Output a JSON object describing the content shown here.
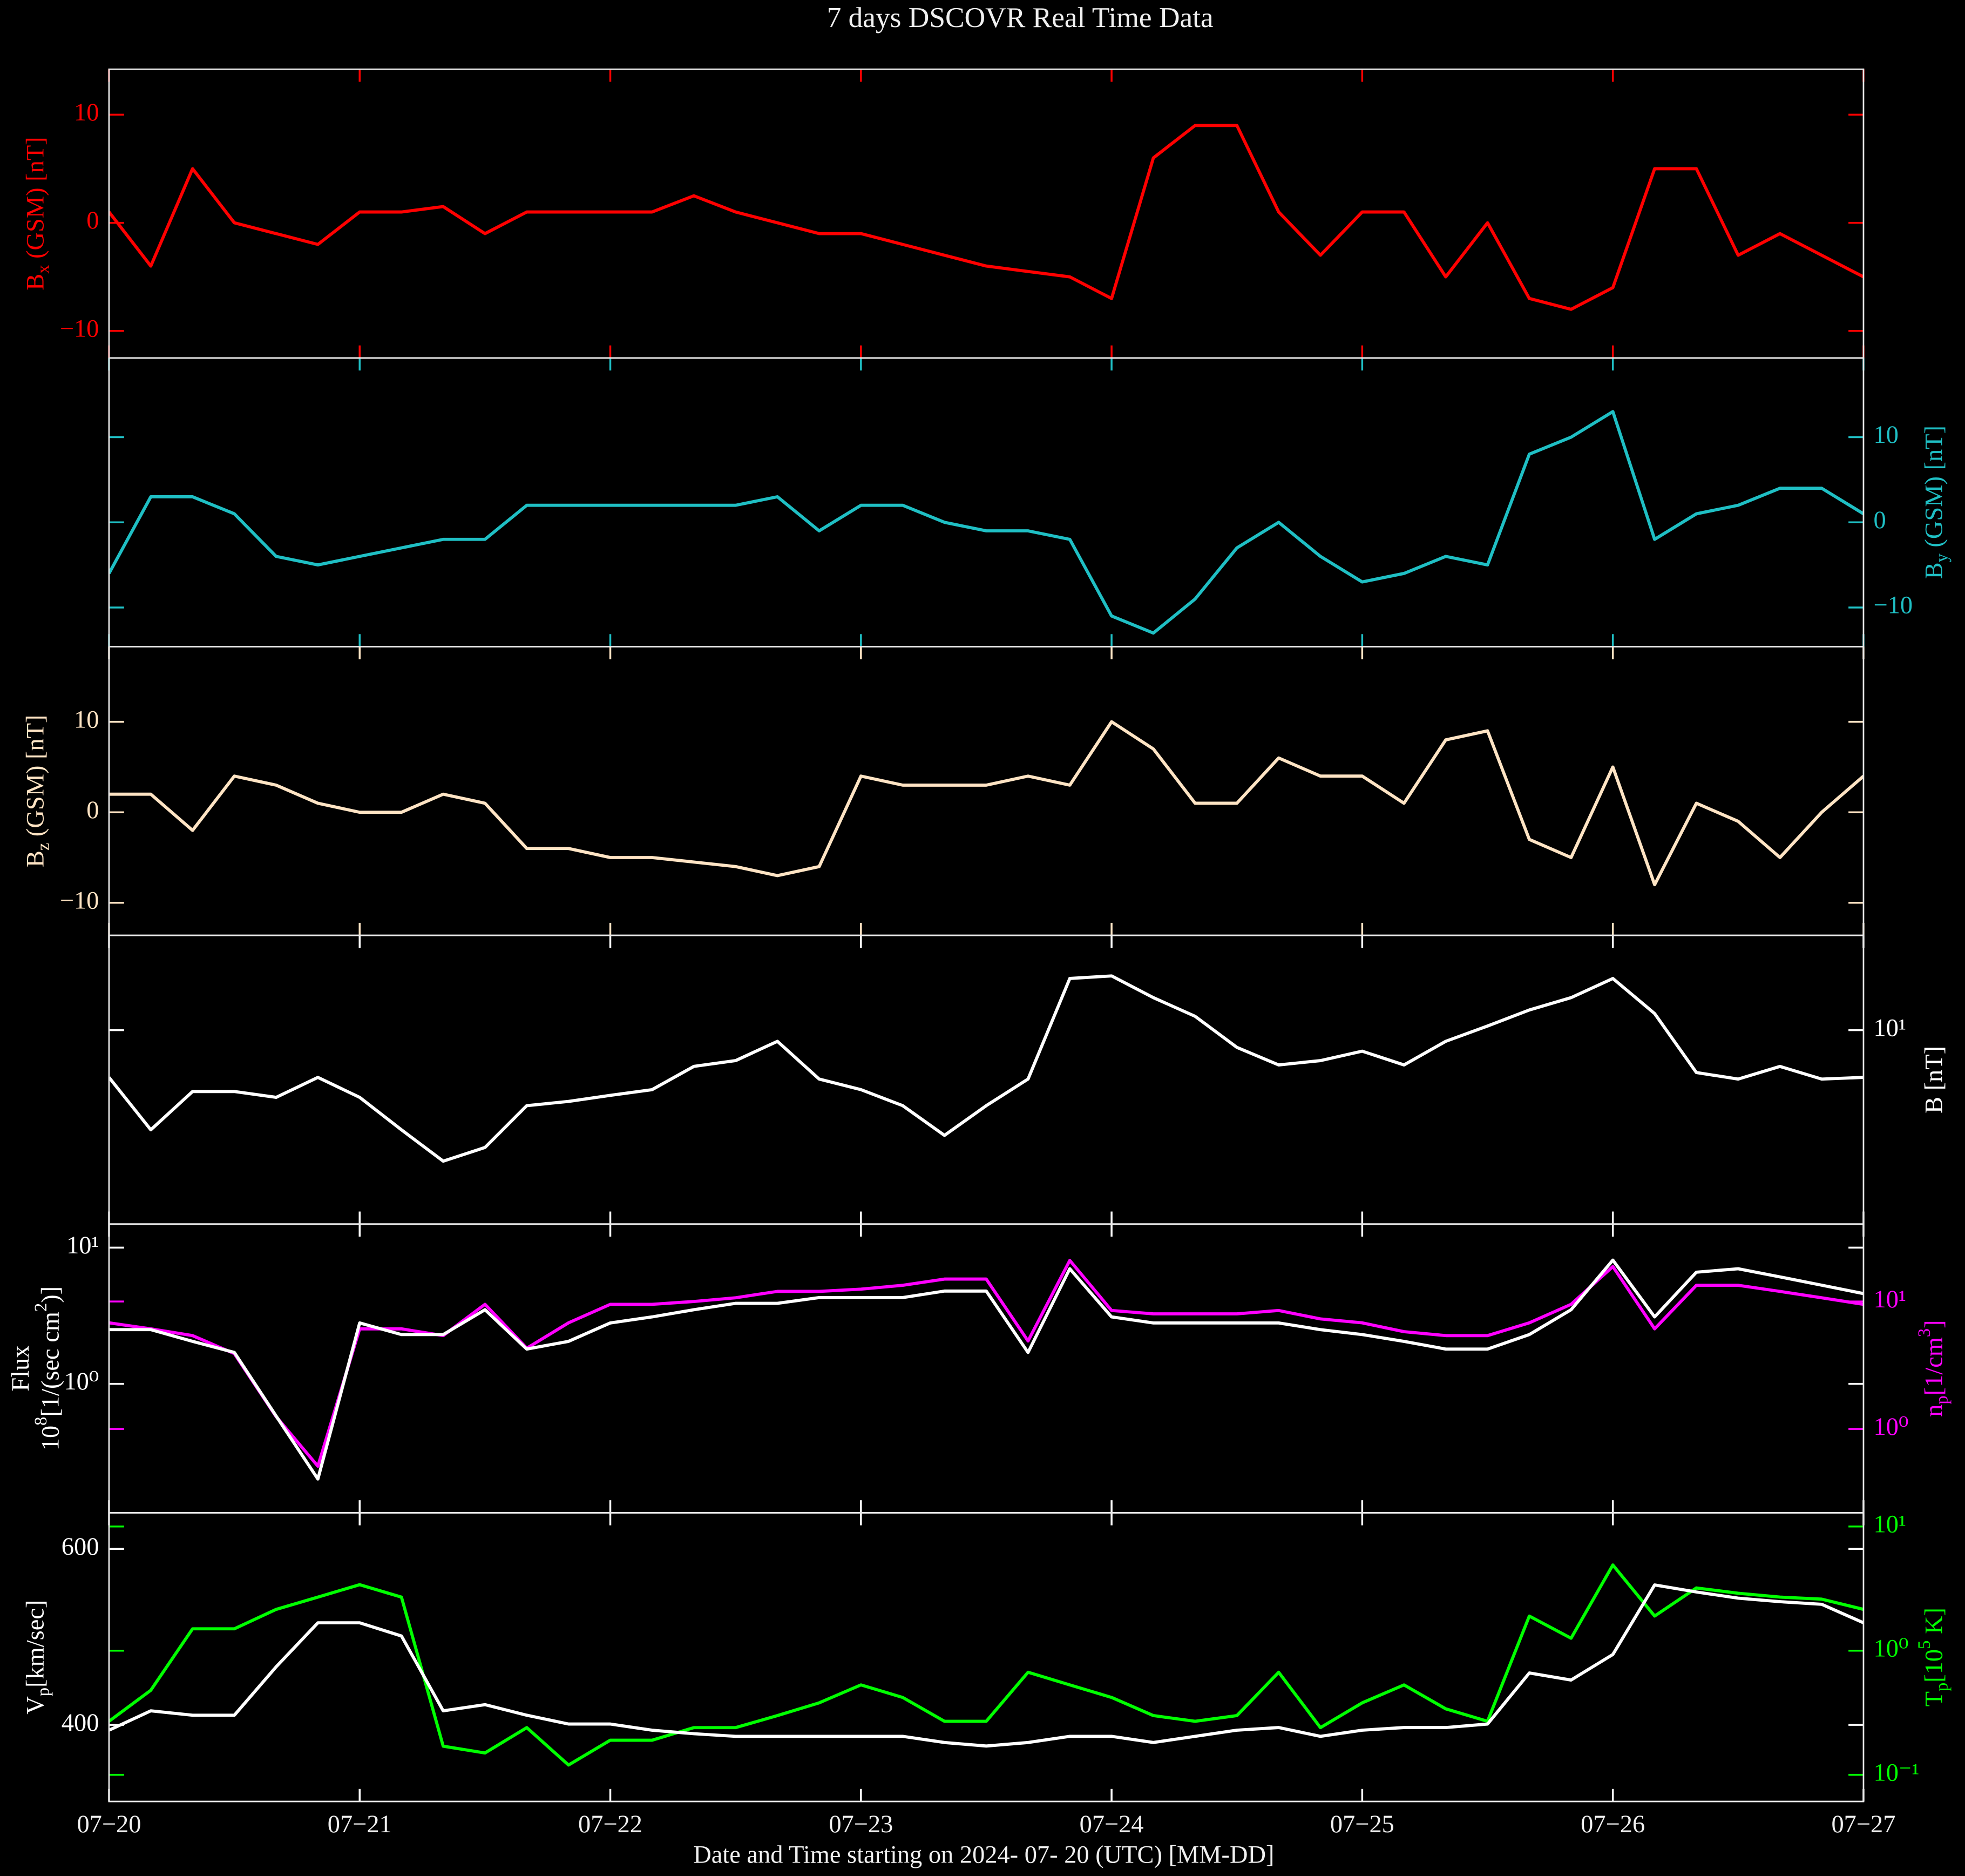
{
  "chart_data": [
    {
      "type": "line",
      "title": "7 days DSCOVR Real Time Data",
      "x": [
        0,
        0.1667,
        0.3333,
        0.5,
        0.6667,
        0.8333,
        1,
        1.1667,
        1.3333,
        1.5,
        1.6667,
        1.8333,
        2,
        2.1667,
        2.3333,
        2.5,
        2.6667,
        2.8333,
        3,
        3.1667,
        3.3333,
        3.5,
        3.6667,
        3.8333,
        4,
        4.1667,
        4.3333,
        4.5,
        4.6667,
        4.8333,
        5,
        5.1667,
        5.3333,
        5.5,
        5.6667,
        5.8333,
        6,
        6.1667,
        6.3333,
        6.5,
        6.6667,
        6.8333,
        7
      ],
      "xlim": [
        0,
        7
      ],
      "xticks": [
        0,
        1,
        2,
        3,
        4,
        5,
        6,
        7
      ],
      "ylim": [
        -12.5,
        14.2
      ],
      "yticks": [
        {
          "value": -10,
          "label": "−10"
        },
        0,
        10
      ],
      "yside": "left",
      "axis_color": "#ff0000",
      "ylabel": [
        [
          "B",
          "x",
          " (GSM) [nT]"
        ]
      ],
      "series": [
        {
          "color": "#ff0000",
          "values": [
            1,
            -4,
            5,
            0,
            -1,
            -2,
            1,
            1,
            1.5,
            -1,
            1,
            1,
            1,
            1,
            2.5,
            1,
            0,
            -1,
            -1,
            -2,
            -3,
            -4,
            -4.5,
            -5,
            -7,
            6,
            9,
            9,
            1,
            -3,
            1,
            1,
            -5,
            0,
            -7,
            -8,
            -6,
            5,
            5,
            -3,
            -1,
            -3,
            -5
          ]
        }
      ]
    },
    {
      "type": "line",
      "x": [
        0,
        0.1667,
        0.3333,
        0.5,
        0.6667,
        0.8333,
        1,
        1.1667,
        1.3333,
        1.5,
        1.6667,
        1.8333,
        2,
        2.1667,
        2.3333,
        2.5,
        2.6667,
        2.8333,
        3,
        3.1667,
        3.3333,
        3.5,
        3.6667,
        3.8333,
        4,
        4.1667,
        4.3333,
        4.5,
        4.6667,
        4.8333,
        5,
        5.1667,
        5.3333,
        5.5,
        5.6667,
        5.8333,
        6,
        6.1667,
        6.3333,
        6.5,
        6.6667,
        6.8333,
        7
      ],
      "xlim": [
        0,
        7
      ],
      "xticks": [
        0,
        1,
        2,
        3,
        4,
        5,
        6,
        7
      ],
      "ylim": [
        -14.6,
        19.3
      ],
      "yticks": [
        {
          "value": -10,
          "label": "−10"
        },
        0,
        10
      ],
      "yside": "right",
      "axis_color": "#1fbfc4",
      "ylabel": [
        [
          "B",
          "y",
          " (GSM) [nT]"
        ]
      ],
      "series": [
        {
          "color": "#1fbfc4",
          "values": [
            -6,
            3,
            3,
            1,
            -4,
            -5,
            -4,
            -3,
            -2,
            -2,
            2,
            2,
            2,
            2,
            2,
            2,
            3,
            -1,
            2,
            2,
            0,
            -1,
            -1,
            -2,
            -11,
            -13,
            -9,
            -3,
            0,
            -4,
            -7,
            -6,
            -4,
            -5,
            8,
            10,
            13,
            -2,
            1,
            2,
            4,
            4,
            1
          ]
        }
      ]
    },
    {
      "type": "line",
      "x": [
        0,
        0.1667,
        0.3333,
        0.5,
        0.6667,
        0.8333,
        1,
        1.1667,
        1.3333,
        1.5,
        1.6667,
        1.8333,
        2,
        2.1667,
        2.3333,
        2.5,
        2.6667,
        2.8333,
        3,
        3.1667,
        3.3333,
        3.5,
        3.6667,
        3.8333,
        4,
        4.1667,
        4.3333,
        4.5,
        4.6667,
        4.8333,
        5,
        5.1667,
        5.3333,
        5.5,
        5.6667,
        5.8333,
        6,
        6.1667,
        6.3333,
        6.5,
        6.6667,
        6.8333,
        7
      ],
      "xlim": [
        0,
        7
      ],
      "xticks": [
        0,
        1,
        2,
        3,
        4,
        5,
        6,
        7
      ],
      "ylim": [
        -13.6,
        18.3
      ],
      "yticks": [
        {
          "value": -10,
          "label": "−10"
        },
        0,
        10
      ],
      "yside": "left",
      "axis_color": "#ffe4c4",
      "ylabel": [
        [
          "B",
          "z",
          " (GSM) [nT]"
        ]
      ],
      "series": [
        {
          "color": "#ffe4c4",
          "values": [
            2,
            2,
            -2,
            4,
            3,
            1,
            0,
            0,
            2,
            1,
            -4,
            -4,
            -5,
            -5,
            -5.5,
            -6,
            -7,
            -6,
            4,
            3,
            3,
            3,
            4,
            3,
            10,
            7,
            1,
            1,
            6,
            4,
            4,
            1,
            8,
            9,
            -3,
            -5,
            5,
            -8,
            1,
            -1,
            -5,
            0,
            4
          ]
        }
      ]
    },
    {
      "type": "line",
      "x": [
        0,
        0.1667,
        0.3333,
        0.5,
        0.6667,
        0.8333,
        1,
        1.1667,
        1.3333,
        1.5,
        1.6667,
        1.8333,
        2,
        2.1667,
        2.3333,
        2.5,
        2.6667,
        2.8333,
        3,
        3.1667,
        3.3333,
        3.5,
        3.6667,
        3.8333,
        4,
        4.1667,
        4.3333,
        4.5,
        4.6667,
        4.8333,
        5,
        5.1667,
        5.3333,
        5.5,
        5.6667,
        5.8333,
        6,
        6.1667,
        6.3333,
        6.5,
        6.6667,
        6.8333,
        7
      ],
      "xlim": [
        0,
        7
      ],
      "xticks": [
        0,
        1,
        2,
        3,
        4,
        5,
        6,
        7
      ],
      "ylim": [
        1.6,
        24.5
      ],
      "yscale": "log",
      "yticks": [
        {
          "value": 10,
          "label": "10¹"
        }
      ],
      "yside": "right",
      "axis_color": "#ffffff",
      "ylabel": [
        [
          "B [nT]"
        ]
      ],
      "series": [
        {
          "color": "#ffffff",
          "values": [
            6.4,
            3.9,
            5.6,
            5.6,
            5.3,
            6.4,
            5.3,
            3.9,
            2.9,
            3.3,
            4.9,
            5.1,
            5.4,
            5.7,
            7.1,
            7.5,
            9.0,
            6.3,
            5.7,
            4.9,
            3.7,
            4.9,
            6.3,
            16.3,
            16.7,
            13.6,
            11.4,
            8.5,
            7.2,
            7.5,
            8.2,
            7.2,
            9.0,
            10.4,
            12.1,
            13.6,
            16.3,
            11.7,
            6.7,
            6.3,
            7.1,
            6.3,
            6.4
          ]
        }
      ]
    },
    {
      "type": "line",
      "x": [
        0,
        0.1667,
        0.3333,
        0.5,
        0.6667,
        0.8333,
        1,
        1.1667,
        1.3333,
        1.5,
        1.6667,
        1.8333,
        2,
        2.1667,
        2.3333,
        2.5,
        2.6667,
        2.8333,
        3,
        3.1667,
        3.3333,
        3.5,
        3.6667,
        3.8333,
        4,
        4.1667,
        4.3333,
        4.5,
        4.6667,
        4.8333,
        5,
        5.1667,
        5.3333,
        5.5,
        5.6667,
        5.8333,
        6,
        6.1667,
        6.3333,
        6.5,
        6.6667,
        6.8333,
        7
      ],
      "xlim": [
        0,
        7
      ],
      "xticks": [
        0,
        1,
        2,
        3,
        4,
        5,
        6,
        7
      ],
      "ylim": [
        0.113,
        14.9
      ],
      "yscale": "log",
      "yticks": [
        {
          "value": 1,
          "label": "10⁰"
        },
        {
          "value": 10,
          "label": "10¹"
        }
      ],
      "yside": "left",
      "axis_color": "#ffffff",
      "ylabel": [
        [
          "Flux"
        ],
        [
          "10",
          "8",
          "[1/(sec cm",
          "2",
          ")]"
        ]
      ],
      "y2lim": [
        0.22,
        40.5
      ],
      "y2scale": "log",
      "y2ticks": [
        {
          "value": 1,
          "label": "10⁰"
        },
        {
          "value": 10,
          "label": "10¹"
        }
      ],
      "y2_axis_color": "#ff00ff",
      "y2label": [
        [
          "n",
          "p",
          "[1/cm",
          "3",
          "]"
        ]
      ],
      "series": [
        {
          "color": "#ff00ff",
          "axis": "y2",
          "values": [
            6.8,
            6.1,
            5.4,
            3.9,
            1.25,
            0.51,
            6.1,
            6.1,
            5.4,
            9.5,
            4.3,
            6.8,
            9.5,
            9.5,
            10,
            10.7,
            12,
            12,
            12.5,
            13.4,
            15,
            15,
            4.9,
            21,
            8.5,
            8,
            8,
            8,
            8.5,
            7.3,
            6.8,
            5.8,
            5.4,
            5.4,
            6.8,
            9.5,
            18.8,
            6.1,
            13.4,
            13.4,
            12,
            10.7,
            9.5
          ]
        },
        {
          "color": "#ffffff",
          "values": [
            2.5,
            2.5,
            2.05,
            1.7,
            0.58,
            0.2,
            2.8,
            2.3,
            2.3,
            3.5,
            1.8,
            2.05,
            2.8,
            3.1,
            3.5,
            3.9,
            3.9,
            4.3,
            4.3,
            4.3,
            4.8,
            4.8,
            1.7,
            7.0,
            3.1,
            2.8,
            2.8,
            2.8,
            2.8,
            2.5,
            2.3,
            2.05,
            1.8,
            1.8,
            2.3,
            3.5,
            8.1,
            3.1,
            6.6,
            7.0,
            6.1,
            5.3,
            4.6
          ]
        }
      ]
    },
    {
      "type": "line",
      "xlabel": "Date and Time starting on 2024- 07- 20 (UTC) [MM-DD]",
      "x": [
        0,
        0.1667,
        0.3333,
        0.5,
        0.6667,
        0.8333,
        1,
        1.1667,
        1.3333,
        1.5,
        1.6667,
        1.8333,
        2,
        2.1667,
        2.3333,
        2.5,
        2.6667,
        2.8333,
        3,
        3.1667,
        3.3333,
        3.5,
        3.6667,
        3.8333,
        4,
        4.1667,
        4.3333,
        4.5,
        4.6667,
        4.8333,
        5,
        5.1667,
        5.3333,
        5.5,
        5.6667,
        5.8333,
        6,
        6.1667,
        6.3333,
        6.5,
        6.6667,
        6.8333,
        7
      ],
      "xlim": [
        0,
        7
      ],
      "xticks": [
        {
          "value": 0,
          "label": "07−20"
        },
        {
          "value": 1,
          "label": "07−21"
        },
        {
          "value": 2,
          "label": "07−22"
        },
        {
          "value": 3,
          "label": "07−23"
        },
        {
          "value": 4,
          "label": "07−24"
        },
        {
          "value": 5,
          "label": "07−25"
        },
        {
          "value": 6,
          "label": "07−26"
        },
        {
          "value": 7,
          "label": "07−27"
        }
      ],
      "ylim": [
        313,
        641
      ],
      "yticks": [
        400,
        600
      ],
      "yside": "left",
      "axis_color": "#ffffff",
      "ylabel": [
        [
          "V",
          "p",
          "[km/sec]"
        ]
      ],
      "y2lim": [
        0.061,
        12.9
      ],
      "y2scale": "log",
      "y2ticks": [
        {
          "value": 0.1,
          "label": "10⁻¹"
        },
        {
          "value": 1,
          "label": "10⁰"
        },
        {
          "value": 10,
          "label": "10¹"
        }
      ],
      "y2_axis_color": "#00ff00",
      "y2label": [
        [
          "T",
          "p",
          "[10",
          "5",
          " K]"
        ]
      ],
      "series": [
        {
          "color": "#00ff00",
          "axis": "y2",
          "values": [
            0.27,
            0.48,
            1.5,
            1.5,
            2.15,
            2.7,
            3.4,
            2.7,
            0.17,
            0.15,
            0.24,
            0.12,
            0.19,
            0.19,
            0.24,
            0.24,
            0.3,
            0.38,
            0.53,
            0.42,
            0.27,
            0.27,
            0.67,
            0.53,
            0.42,
            0.3,
            0.27,
            0.3,
            0.67,
            0.24,
            0.38,
            0.53,
            0.34,
            0.27,
            1.9,
            1.26,
            4.9,
            1.9,
            3.2,
            2.9,
            2.7,
            2.6,
            2.15
          ]
        },
        {
          "color": "#ffffff",
          "values": [
            394,
            416,
            411,
            411,
            466,
            516,
            516,
            501,
            416,
            423,
            411,
            401,
            401,
            394,
            390,
            387,
            387,
            387,
            387,
            387,
            380,
            376,
            380,
            387,
            387,
            380,
            387,
            394,
            397,
            387,
            394,
            397,
            397,
            401,
            459,
            451,
            480,
            559,
            551,
            544,
            540,
            537,
            516
          ]
        }
      ]
    }
  ]
}
